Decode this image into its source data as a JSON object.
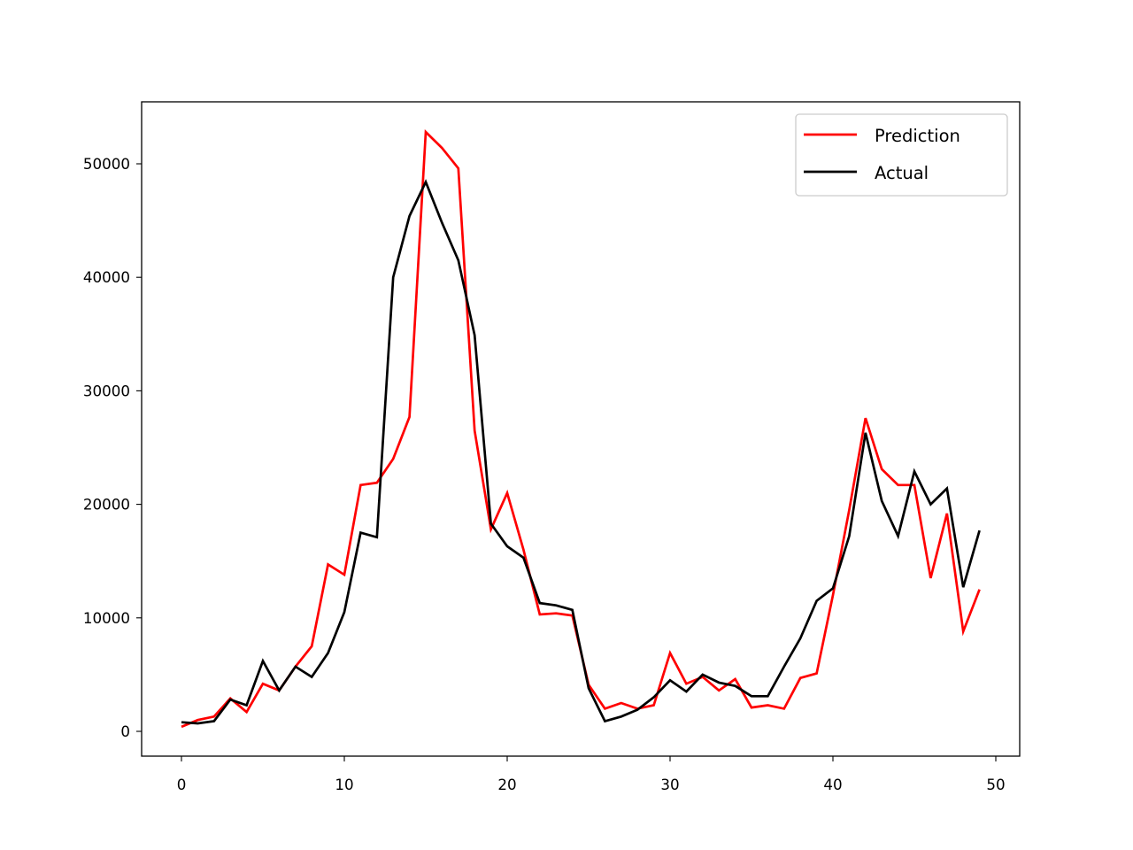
{
  "chart_data": {
    "type": "line",
    "title": "",
    "xlabel": "",
    "ylabel": "",
    "xlim": [
      -2.45,
      51.45
    ],
    "ylim": [
      -2200,
      55400
    ],
    "grid": false,
    "legend_position": "upper right",
    "x_ticks": [
      "0",
      "10",
      "20",
      "30",
      "40",
      "50"
    ],
    "y_ticks": [
      "0",
      "10000",
      "20000",
      "30000",
      "40000",
      "50000"
    ],
    "x": [
      0,
      1,
      2,
      3,
      4,
      5,
      6,
      7,
      8,
      9,
      10,
      11,
      12,
      13,
      14,
      15,
      16,
      17,
      18,
      19,
      20,
      21,
      22,
      23,
      24,
      25,
      26,
      27,
      28,
      29,
      30,
      31,
      32,
      33,
      34,
      35,
      36,
      37,
      38,
      39,
      40,
      41,
      42,
      43,
      44,
      45,
      46,
      47,
      48,
      49
    ],
    "series": [
      {
        "name": "Prediction",
        "color": "#ff0000",
        "values": [
          400,
          1000,
          1300,
          2900,
          1700,
          4200,
          3600,
          5700,
          7500,
          14700,
          13800,
          21700,
          21900,
          24000,
          27700,
          52800,
          51400,
          49600,
          26500,
          17800,
          21000,
          16000,
          10300,
          10400,
          10200,
          4100,
          2000,
          2500,
          2000,
          2300,
          6900,
          4200,
          4800,
          3600,
          4600,
          2100,
          2300,
          2000,
          4700,
          5100,
          12000,
          19500,
          27600,
          23100,
          21700,
          21700,
          13500,
          19200,
          8800,
          12500
        ]
      },
      {
        "name": "Actual",
        "color": "#000000",
        "values": [
          800,
          700,
          900,
          2800,
          2300,
          6200,
          3600,
          5700,
          4800,
          6900,
          10500,
          17500,
          17100,
          40000,
          45400,
          48400,
          44800,
          41500,
          34900,
          18300,
          16300,
          15300,
          11300,
          11100,
          10700,
          3800,
          900,
          1300,
          1900,
          3000,
          4500,
          3500,
          5000,
          4300,
          4000,
          3100,
          3100,
          5700,
          8200,
          11500,
          12600,
          17200,
          26300,
          20300,
          17200,
          22900,
          20000,
          21400,
          12700,
          17700
        ]
      }
    ]
  },
  "legend": {
    "items": [
      {
        "label": "Prediction",
        "color": "#ff0000"
      },
      {
        "label": "Actual",
        "color": "#000000"
      }
    ]
  }
}
